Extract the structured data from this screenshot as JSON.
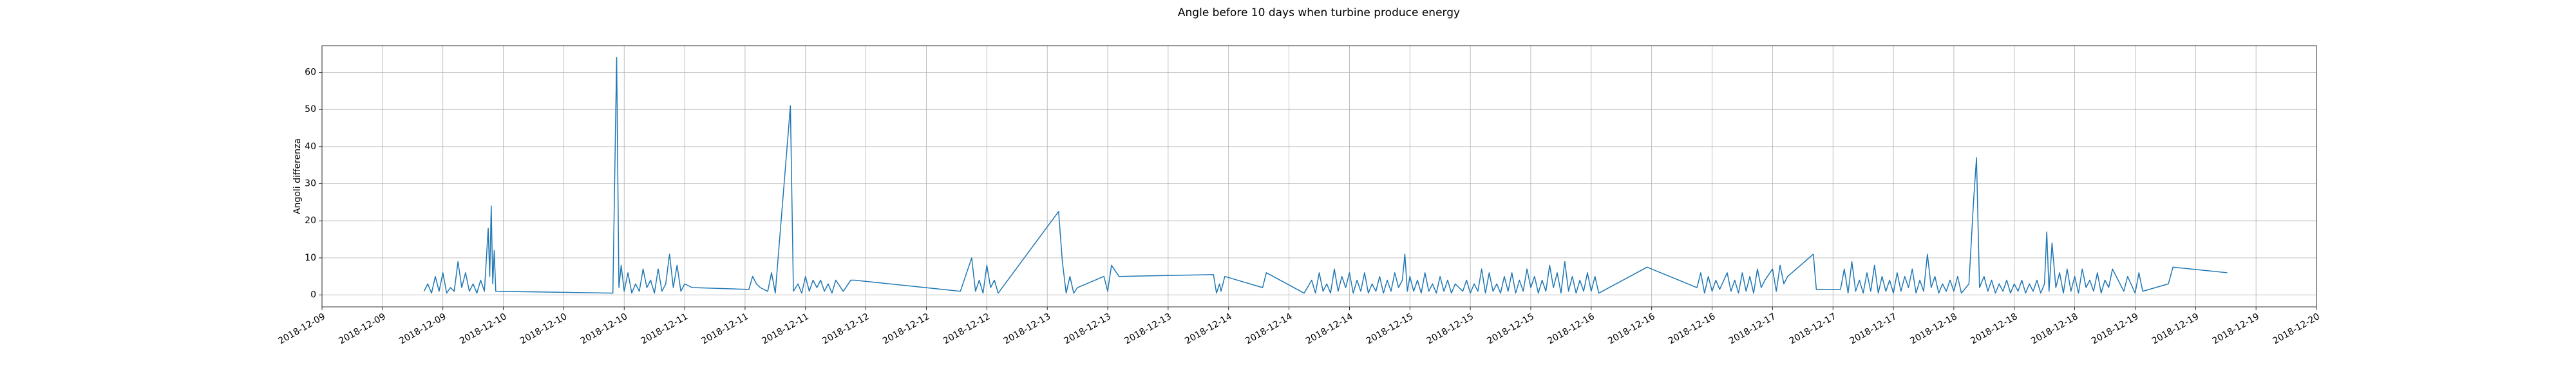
{
  "chart_data": {
    "type": "line",
    "title": "Angle before 10 days when turbine produce energy",
    "y_label": "Angoli differenza",
    "grid": true,
    "xlim": [
      "2018-12-09 00:00",
      "2018-12-20 00:00"
    ],
    "xticks": [
      {
        "value": "2018-12-09 00:00",
        "label": "2018-12-09"
      },
      {
        "value": "2018-12-09 08:00",
        "label": "2018-12-09"
      },
      {
        "value": "2018-12-09 16:00",
        "label": "2018-12-09"
      },
      {
        "value": "2018-12-10 00:00",
        "label": "2018-12-10"
      },
      {
        "value": "2018-12-10 08:00",
        "label": "2018-12-10"
      },
      {
        "value": "2018-12-10 16:00",
        "label": "2018-12-10"
      },
      {
        "value": "2018-12-11 00:00",
        "label": "2018-12-11"
      },
      {
        "value": "2018-12-11 08:00",
        "label": "2018-12-11"
      },
      {
        "value": "2018-12-11 16:00",
        "label": "2018-12-11"
      },
      {
        "value": "2018-12-12 00:00",
        "label": "2018-12-12"
      },
      {
        "value": "2018-12-12 08:00",
        "label": "2018-12-12"
      },
      {
        "value": "2018-12-12 16:00",
        "label": "2018-12-12"
      },
      {
        "value": "2018-12-13 00:00",
        "label": "2018-12-13"
      },
      {
        "value": "2018-12-13 08:00",
        "label": "2018-12-13"
      },
      {
        "value": "2018-12-13 16:00",
        "label": "2018-12-13"
      },
      {
        "value": "2018-12-14 00:00",
        "label": "2018-12-14"
      },
      {
        "value": "2018-12-14 08:00",
        "label": "2018-12-14"
      },
      {
        "value": "2018-12-14 16:00",
        "label": "2018-12-14"
      },
      {
        "value": "2018-12-15 00:00",
        "label": "2018-12-15"
      },
      {
        "value": "2018-12-15 08:00",
        "label": "2018-12-15"
      },
      {
        "value": "2018-12-15 16:00",
        "label": "2018-12-15"
      },
      {
        "value": "2018-12-16 00:00",
        "label": "2018-12-16"
      },
      {
        "value": "2018-12-16 08:00",
        "label": "2018-12-16"
      },
      {
        "value": "2018-12-16 16:00",
        "label": "2018-12-16"
      },
      {
        "value": "2018-12-17 00:00",
        "label": "2018-12-17"
      },
      {
        "value": "2018-12-17 08:00",
        "label": "2018-12-17"
      },
      {
        "value": "2018-12-17 16:00",
        "label": "2018-12-17"
      },
      {
        "value": "2018-12-18 00:00",
        "label": "2018-12-18"
      },
      {
        "value": "2018-12-18 08:00",
        "label": "2018-12-18"
      },
      {
        "value": "2018-12-18 16:00",
        "label": "2018-12-18"
      },
      {
        "value": "2018-12-19 00:00",
        "label": "2018-12-19"
      },
      {
        "value": "2018-12-19 08:00",
        "label": "2018-12-19"
      },
      {
        "value": "2018-12-19 16:00",
        "label": "2018-12-19"
      },
      {
        "value": "2018-12-20 00:00",
        "label": "2018-12-20"
      }
    ],
    "ylim": [
      -3.2,
      67.2
    ],
    "yticks": [
      0,
      10,
      20,
      30,
      40,
      50,
      60
    ],
    "x": [
      "2018-12-09 13:30",
      "2018-12-09 14:00",
      "2018-12-09 14:30",
      "2018-12-09 15:00",
      "2018-12-09 15:30",
      "2018-12-09 16:00",
      "2018-12-09 16:30",
      "2018-12-09 17:00",
      "2018-12-09 17:30",
      "2018-12-09 18:00",
      "2018-12-09 18:30",
      "2018-12-09 19:00",
      "2018-12-09 19:30",
      "2018-12-09 20:00",
      "2018-12-09 20:30",
      "2018-12-09 21:00",
      "2018-12-09 21:30",
      "2018-12-09 22:00",
      "2018-12-09 22:12",
      "2018-12-09 22:24",
      "2018-12-09 22:36",
      "2018-12-09 22:48",
      "2018-12-09 23:00",
      "2018-12-10 14:30",
      "2018-12-10 15:00",
      "2018-12-10 15:18",
      "2018-12-10 15:36",
      "2018-12-10 16:00",
      "2018-12-10 16:30",
      "2018-12-10 17:00",
      "2018-12-10 17:30",
      "2018-12-10 18:00",
      "2018-12-10 18:30",
      "2018-12-10 19:00",
      "2018-12-10 19:30",
      "2018-12-10 20:00",
      "2018-12-10 20:30",
      "2018-12-10 21:00",
      "2018-12-10 21:30",
      "2018-12-10 22:00",
      "2018-12-10 22:30",
      "2018-12-10 23:00",
      "2018-12-10 23:30",
      "2018-12-11 00:00",
      "2018-12-11 01:00",
      "2018-12-11 08:30",
      "2018-12-11 09:00",
      "2018-12-11 09:30",
      "2018-12-11 10:00",
      "2018-12-11 11:00",
      "2018-12-11 11:30",
      "2018-12-11 12:00",
      "2018-12-11 14:00",
      "2018-12-11 14:24",
      "2018-12-11 15:00",
      "2018-12-11 15:30",
      "2018-12-11 16:00",
      "2018-12-11 16:30",
      "2018-12-11 17:00",
      "2018-12-11 17:30",
      "2018-12-11 18:00",
      "2018-12-11 18:30",
      "2018-12-11 19:00",
      "2018-12-11 19:30",
      "2018-12-11 20:00",
      "2018-12-11 21:00",
      "2018-12-11 22:00",
      "2018-12-11 22:30",
      "2018-12-12 12:30",
      "2018-12-12 14:00",
      "2018-12-12 14:30",
      "2018-12-12 15:00",
      "2018-12-12 15:30",
      "2018-12-12 16:00",
      "2018-12-12 16:30",
      "2018-12-12 17:00",
      "2018-12-12 17:30",
      "2018-12-13 01:30",
      "2018-12-13 02:00",
      "2018-12-13 02:30",
      "2018-12-13 03:00",
      "2018-12-13 03:30",
      "2018-12-13 04:00",
      "2018-12-13 07:30",
      "2018-12-13 08:00",
      "2018-12-13 08:30",
      "2018-12-13 09:30",
      "2018-12-13 22:00",
      "2018-12-13 22:24",
      "2018-12-13 22:48",
      "2018-12-13 23:00",
      "2018-12-13 23:30",
      "2018-12-14 04:30",
      "2018-12-14 05:00",
      "2018-12-14 10:00",
      "2018-12-14 11:00",
      "2018-12-14 11:30",
      "2018-12-14 12:00",
      "2018-12-14 12:30",
      "2018-12-14 13:00",
      "2018-12-14 13:30",
      "2018-12-14 14:00",
      "2018-12-14 14:30",
      "2018-12-14 15:00",
      "2018-12-14 15:30",
      "2018-12-14 16:00",
      "2018-12-14 16:30",
      "2018-12-14 17:00",
      "2018-12-14 17:30",
      "2018-12-14 18:00",
      "2018-12-14 18:30",
      "2018-12-14 19:00",
      "2018-12-14 19:30",
      "2018-12-14 20:00",
      "2018-12-14 20:30",
      "2018-12-14 21:00",
      "2018-12-14 21:30",
      "2018-12-14 22:00",
      "2018-12-14 22:30",
      "2018-12-14 23:00",
      "2018-12-14 23:20",
      "2018-12-14 23:40",
      "2018-12-15 00:00",
      "2018-12-15 00:30",
      "2018-12-15 01:00",
      "2018-12-15 01:30",
      "2018-12-15 02:00",
      "2018-12-15 02:30",
      "2018-12-15 03:00",
      "2018-12-15 03:30",
      "2018-12-15 04:00",
      "2018-12-15 04:30",
      "2018-12-15 05:00",
      "2018-12-15 05:30",
      "2018-12-15 06:00",
      "2018-12-15 07:00",
      "2018-12-15 07:30",
      "2018-12-15 08:00",
      "2018-12-15 08:30",
      "2018-12-15 09:00",
      "2018-12-15 09:30",
      "2018-12-15 10:00",
      "2018-12-15 10:30",
      "2018-12-15 11:00",
      "2018-12-15 11:30",
      "2018-12-15 12:00",
      "2018-12-15 12:30",
      "2018-12-15 13:00",
      "2018-12-15 13:30",
      "2018-12-15 14:00",
      "2018-12-15 14:30",
      "2018-12-15 15:00",
      "2018-12-15 15:30",
      "2018-12-15 16:00",
      "2018-12-15 16:30",
      "2018-12-15 17:00",
      "2018-12-15 17:30",
      "2018-12-15 18:00",
      "2018-12-15 18:30",
      "2018-12-15 19:00",
      "2018-12-15 19:30",
      "2018-12-15 20:00",
      "2018-12-15 20:30",
      "2018-12-15 21:00",
      "2018-12-15 21:30",
      "2018-12-15 22:00",
      "2018-12-15 22:30",
      "2018-12-15 23:00",
      "2018-12-15 23:30",
      "2018-12-16 00:00",
      "2018-12-16 00:30",
      "2018-12-16 01:00",
      "2018-12-16 07:24",
      "2018-12-16 14:00",
      "2018-12-16 14:30",
      "2018-12-16 15:00",
      "2018-12-16 15:30",
      "2018-12-16 16:00",
      "2018-12-16 16:30",
      "2018-12-16 17:00",
      "2018-12-16 18:00",
      "2018-12-16 18:30",
      "2018-12-16 19:00",
      "2018-12-16 19:30",
      "2018-12-16 20:00",
      "2018-12-16 20:30",
      "2018-12-16 21:00",
      "2018-12-16 21:30",
      "2018-12-16 22:00",
      "2018-12-16 22:30",
      "2018-12-16 23:00",
      "2018-12-17 00:00",
      "2018-12-17 00:30",
      "2018-12-17 01:00",
      "2018-12-17 01:30",
      "2018-12-17 02:00",
      "2018-12-17 05:24",
      "2018-12-17 05:48",
      "2018-12-17 09:00",
      "2018-12-17 09:30",
      "2018-12-17 10:00",
      "2018-12-17 10:30",
      "2018-12-17 11:00",
      "2018-12-17 11:30",
      "2018-12-17 12:00",
      "2018-12-17 12:30",
      "2018-12-17 13:00",
      "2018-12-17 13:30",
      "2018-12-17 14:00",
      "2018-12-17 14:30",
      "2018-12-17 15:00",
      "2018-12-17 15:30",
      "2018-12-17 16:00",
      "2018-12-17 16:30",
      "2018-12-17 17:00",
      "2018-12-17 17:30",
      "2018-12-17 18:00",
      "2018-12-17 18:30",
      "2018-12-17 19:00",
      "2018-12-17 19:30",
      "2018-12-17 20:00",
      "2018-12-17 20:30",
      "2018-12-17 21:00",
      "2018-12-17 21:30",
      "2018-12-17 22:00",
      "2018-12-17 22:30",
      "2018-12-17 23:00",
      "2018-12-17 23:30",
      "2018-12-18 00:00",
      "2018-12-18 00:30",
      "2018-12-18 01:00",
      "2018-12-18 02:00",
      "2018-12-18 02:36",
      "2018-12-18 03:00",
      "2018-12-18 03:24",
      "2018-12-18 04:00",
      "2018-12-18 04:30",
      "2018-12-18 05:00",
      "2018-12-18 05:30",
      "2018-12-18 06:00",
      "2018-12-18 06:30",
      "2018-12-18 07:00",
      "2018-12-18 07:30",
      "2018-12-18 08:00",
      "2018-12-18 08:30",
      "2018-12-18 09:00",
      "2018-12-18 09:30",
      "2018-12-18 10:00",
      "2018-12-18 10:30",
      "2018-12-18 11:00",
      "2018-12-18 11:30",
      "2018-12-18 12:00",
      "2018-12-18 12:18",
      "2018-12-18 12:36",
      "2018-12-18 13:00",
      "2018-12-18 13:30",
      "2018-12-18 14:00",
      "2018-12-18 14:30",
      "2018-12-18 15:00",
      "2018-12-18 15:30",
      "2018-12-18 16:00",
      "2018-12-18 16:30",
      "2018-12-18 17:00",
      "2018-12-18 17:30",
      "2018-12-18 18:00",
      "2018-12-18 18:30",
      "2018-12-18 19:00",
      "2018-12-18 19:30",
      "2018-12-18 20:00",
      "2018-12-18 20:30",
      "2018-12-18 21:00",
      "2018-12-18 22:00",
      "2018-12-18 22:30",
      "2018-12-18 23:00",
      "2018-12-19 00:00",
      "2018-12-19 00:30",
      "2018-12-19 01:00",
      "2018-12-19 04:24",
      "2018-12-19 05:00",
      "2018-12-19 12:12"
    ],
    "series": [
      {
        "color": "#1f77b4",
        "values": [
          1,
          3,
          0.5,
          5,
          1,
          6,
          0.5,
          2,
          1,
          9,
          2,
          6,
          1,
          3,
          0.5,
          4,
          1,
          18,
          5,
          24,
          3,
          12,
          1,
          0.5,
          64,
          2,
          8,
          1,
          6,
          0.5,
          3,
          1,
          7,
          2,
          4,
          0.5,
          7,
          1,
          3,
          11,
          2,
          8,
          1,
          3,
          2,
          1.5,
          5,
          3,
          2,
          1,
          6,
          0.5,
          51,
          1,
          3,
          0.5,
          5,
          1,
          4,
          2,
          4,
          1,
          3,
          0.5,
          4,
          1,
          4,
          4,
          1,
          10,
          1,
          4,
          0.5,
          8,
          2,
          4,
          0.5,
          22.5,
          9,
          0.5,
          5,
          0.5,
          2,
          5,
          1,
          8,
          5,
          5.5,
          0.5,
          3,
          1,
          5,
          2,
          6,
          0.5,
          4,
          0.5,
          6,
          1,
          3,
          0.5,
          7,
          1,
          5,
          2,
          6,
          0.5,
          4,
          1,
          6,
          0.5,
          3,
          1,
          5,
          0.5,
          4,
          1,
          6,
          2,
          4,
          11,
          1,
          5,
          1,
          4,
          0.5,
          6,
          1,
          3,
          0.5,
          5,
          1,
          4,
          0.5,
          3,
          1,
          4,
          0.5,
          3,
          1,
          7,
          0.5,
          6,
          1,
          3,
          0.5,
          5,
          1,
          6,
          0.5,
          4,
          1,
          7,
          2,
          5,
          0.5,
          4,
          1,
          8,
          2,
          6,
          0.5,
          9,
          1,
          5,
          0.5,
          4,
          1,
          6,
          1,
          5,
          0.5,
          7.5,
          2,
          6,
          0.5,
          5,
          1,
          4,
          1.5,
          6,
          1,
          4,
          0.5,
          6,
          1,
          5,
          0.5,
          7,
          2,
          4,
          7,
          1,
          8,
          3,
          5,
          11,
          1.5,
          1.5,
          7,
          0.5,
          9,
          1,
          4,
          0.5,
          6,
          1,
          8,
          0.5,
          5,
          1,
          4,
          0.5,
          6,
          1,
          5,
          2,
          7,
          0.5,
          4,
          1,
          11,
          2,
          5,
          0.5,
          3,
          1,
          4,
          1,
          5,
          0.5,
          3,
          25,
          37,
          2,
          5,
          1,
          4,
          0.5,
          3,
          1,
          4,
          0.5,
          3,
          1,
          4,
          0.5,
          3,
          1,
          4,
          0.5,
          3,
          17,
          1,
          14,
          2,
          6,
          0.5,
          7,
          1,
          5,
          0.5,
          7,
          2,
          4,
          1,
          6,
          0.5,
          4,
          2,
          7,
          3,
          1,
          5,
          0.5,
          6,
          1,
          3,
          7.5,
          6
        ]
      }
    ]
  }
}
